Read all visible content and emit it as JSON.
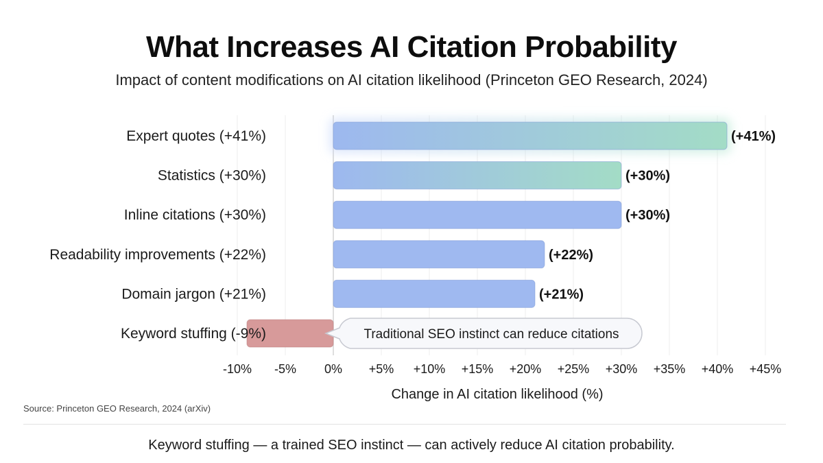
{
  "title": "What Increases AI Citation Probability",
  "subtitle": "Impact of content modifications on AI citation likelihood (Princeton GEO Research, 2024)",
  "source": "Source: Princeton GEO Research, 2024 (arXiv)",
  "footnote": "Keyword stuffing — a trained SEO instinct — can actively reduce AI citation probability.",
  "colors": {
    "positive_start": "#9db8ef",
    "positive_end": "#a3dcc6",
    "positive_plain": "#9fb9f0",
    "negative": "#d79a9a",
    "callout_border": "#c7c9d1"
  },
  "chart_data": {
    "type": "bar",
    "orientation": "horizontal",
    "categories": [
      "Expert quotes (+41%)",
      "Statistics (+30%)",
      "Inline citations (+30%)",
      "Readability improvements (+22%)",
      "Domain jargon (+21%)",
      "Keyword stuffing (-9%)"
    ],
    "values": [
      41,
      30,
      30,
      22,
      21,
      -9
    ],
    "data_labels": [
      "(+41%)",
      "(+30%)",
      "(+30%)",
      "(+22%)",
      "(+21%)",
      ""
    ],
    "xlabel": "Change in AI citation likelihood (%)",
    "xlim": [
      -10,
      45
    ],
    "x_ticks": [
      -10,
      -5,
      0,
      5,
      10,
      15,
      20,
      25,
      30,
      35,
      40,
      45
    ],
    "x_tick_labels": [
      "-10%",
      "-5%",
      "0%",
      "+5%",
      "+10%",
      "+15%",
      "+20%",
      "+25%",
      "+30%",
      "+35%",
      "+40%",
      "+45%"
    ],
    "grid": "vertical",
    "annotation": {
      "text": "Traditional SEO instinct can reduce citations",
      "category": "Keyword stuffing (-9%)"
    }
  }
}
